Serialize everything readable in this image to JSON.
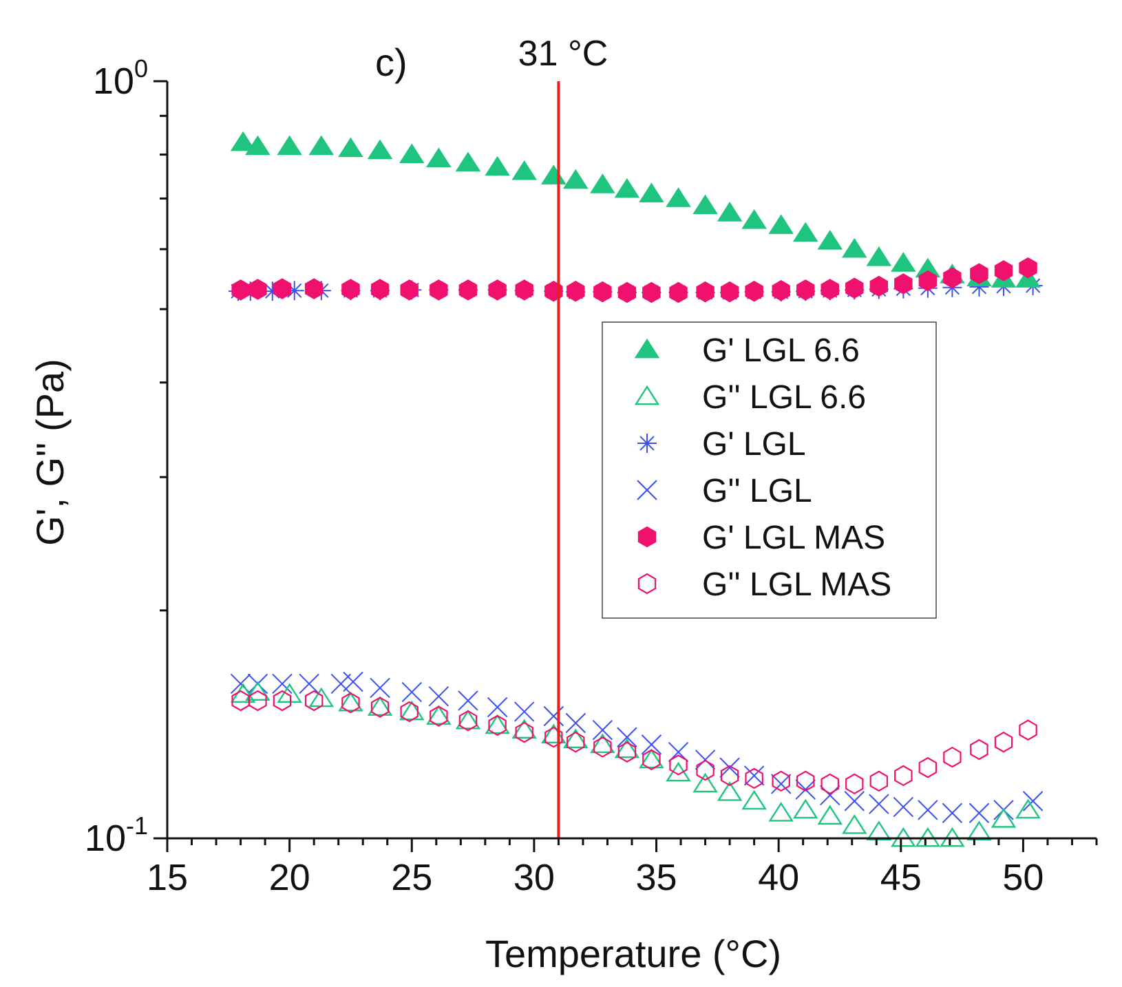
{
  "chart_data": {
    "type": "scatter",
    "panel_label": "c)",
    "xlabel": "Temperature (°C)",
    "ylabel": "G', G'' (Pa)",
    "xlim": [
      15,
      53
    ],
    "ylim": [
      0.1,
      1.0
    ],
    "yscale": "log",
    "xticks": [
      15,
      20,
      25,
      30,
      35,
      40,
      45,
      50
    ],
    "xtick_labels": [
      "15",
      "20",
      "25",
      "30",
      "35",
      "40",
      "45",
      "50"
    ],
    "yticks": [
      {
        "value": 1.0,
        "base": "10",
        "exp": "0"
      },
      {
        "value": 0.1,
        "base": "10",
        "exp": "-1"
      }
    ],
    "reference_line": {
      "x": 31,
      "label": "31 °C",
      "color": "#e8201e"
    },
    "legend_position": "center-right",
    "series": [
      {
        "name": "G' LGL 6.6",
        "marker": "triangle-filled",
        "color": "#1fc47e",
        "x": [
          18.1,
          18.7,
          20.0,
          21.3,
          22.5,
          23.7,
          25.0,
          26.1,
          27.3,
          28.5,
          29.6,
          30.8,
          31.7,
          32.8,
          33.8,
          34.8,
          35.9,
          37.0,
          38.0,
          39.0,
          40.1,
          41.1,
          42.1,
          43.1,
          44.1,
          45.1,
          46.1,
          47.1,
          48.2,
          49.2,
          50.2
        ],
        "y": [
          0.83,
          0.82,
          0.82,
          0.82,
          0.815,
          0.81,
          0.8,
          0.79,
          0.78,
          0.77,
          0.76,
          0.75,
          0.74,
          0.73,
          0.72,
          0.71,
          0.7,
          0.685,
          0.67,
          0.655,
          0.645,
          0.63,
          0.615,
          0.6,
          0.585,
          0.575,
          0.565,
          0.555,
          0.55,
          0.548,
          0.548
        ]
      },
      {
        "name": "G'' LGL 6.6",
        "marker": "triangle-open",
        "color": "#1fc47e",
        "x": [
          18.1,
          18.7,
          20.0,
          21.3,
          22.5,
          23.7,
          25.0,
          26.1,
          27.3,
          28.5,
          29.6,
          30.8,
          31.7,
          32.8,
          33.8,
          34.8,
          35.9,
          37.0,
          38.0,
          39.0,
          40.1,
          41.1,
          42.1,
          43.1,
          44.1,
          45.1,
          46.1,
          47.1,
          48.2,
          49.2,
          50.2
        ],
        "y": [
          0.155,
          0.156,
          0.155,
          0.153,
          0.151,
          0.149,
          0.147,
          0.145,
          0.143,
          0.141,
          0.139,
          0.137,
          0.135,
          0.133,
          0.131,
          0.127,
          0.122,
          0.118,
          0.115,
          0.112,
          0.108,
          0.109,
          0.107,
          0.104,
          0.102,
          0.1,
          0.1,
          0.1,
          0.102,
          0.106,
          0.109
        ]
      },
      {
        "name": "G' LGL",
        "marker": "asterisk",
        "color": "#3b4ff5",
        "x": [
          17.9,
          18.4,
          19.3,
          20.2,
          21.3,
          22.5,
          23.7,
          25.0,
          26.1,
          27.3,
          28.5,
          29.6,
          30.8,
          31.7,
          32.8,
          33.8,
          34.8,
          35.9,
          37.0,
          38.0,
          39.0,
          40.1,
          41.1,
          42.1,
          43.1,
          44.1,
          45.1,
          46.1,
          47.1,
          48.2,
          49.2,
          50.4
        ],
        "y": [
          0.528,
          0.528,
          0.528,
          0.529,
          0.529,
          0.529,
          0.529,
          0.53,
          0.53,
          0.53,
          0.53,
          0.529,
          0.528,
          0.527,
          0.527,
          0.526,
          0.526,
          0.526,
          0.526,
          0.526,
          0.527,
          0.527,
          0.528,
          0.529,
          0.53,
          0.531,
          0.532,
          0.533,
          0.534,
          0.535,
          0.536,
          0.537
        ]
      },
      {
        "name": "G'' LGL",
        "marker": "x",
        "color": "#3b4ff5",
        "x": [
          18.0,
          18.7,
          19.7,
          20.8,
          22.1,
          22.6,
          23.7,
          25.0,
          26.1,
          27.3,
          28.5,
          29.6,
          30.8,
          31.7,
          32.8,
          33.8,
          34.8,
          35.9,
          37.0,
          38.0,
          39.0,
          40.1,
          41.1,
          42.1,
          43.1,
          44.1,
          45.1,
          46.1,
          47.1,
          48.2,
          49.2,
          50.4
        ],
        "y": [
          0.16,
          0.16,
          0.16,
          0.16,
          0.16,
          0.161,
          0.158,
          0.156,
          0.154,
          0.152,
          0.149,
          0.147,
          0.145,
          0.142,
          0.139,
          0.136,
          0.133,
          0.13,
          0.127,
          0.124,
          0.121,
          0.118,
          0.116,
          0.114,
          0.112,
          0.111,
          0.11,
          0.109,
          0.108,
          0.108,
          0.109,
          0.112
        ]
      },
      {
        "name": "G' LGL MAS",
        "marker": "hexagon-filled",
        "color": "#f0106e",
        "x": [
          18.0,
          18.7,
          19.7,
          21.0,
          22.5,
          23.7,
          24.9,
          26.1,
          27.3,
          28.5,
          29.6,
          30.8,
          31.7,
          32.8,
          33.8,
          34.8,
          35.9,
          37.0,
          38.0,
          39.0,
          40.1,
          41.1,
          42.1,
          43.1,
          44.1,
          45.1,
          46.1,
          47.1,
          48.2,
          49.2,
          50.2
        ],
        "y": [
          0.53,
          0.531,
          0.532,
          0.532,
          0.531,
          0.531,
          0.53,
          0.53,
          0.53,
          0.53,
          0.53,
          0.528,
          0.528,
          0.527,
          0.526,
          0.526,
          0.526,
          0.527,
          0.527,
          0.528,
          0.529,
          0.53,
          0.531,
          0.533,
          0.536,
          0.54,
          0.545,
          0.55,
          0.557,
          0.562,
          0.567
        ]
      },
      {
        "name": "G'' LGL MAS",
        "marker": "hexagon-open",
        "color": "#f0106e",
        "x": [
          18.0,
          18.7,
          19.7,
          21.0,
          22.5,
          23.7,
          24.9,
          26.1,
          27.3,
          28.5,
          29.6,
          30.8,
          31.7,
          32.8,
          33.8,
          34.8,
          35.9,
          37.0,
          38.0,
          39.0,
          40.1,
          41.1,
          42.1,
          43.1,
          44.1,
          45.1,
          46.1,
          47.1,
          48.2,
          49.2,
          50.2
        ],
        "y": [
          0.152,
          0.152,
          0.152,
          0.152,
          0.151,
          0.149,
          0.147,
          0.145,
          0.143,
          0.141,
          0.138,
          0.136,
          0.134,
          0.132,
          0.13,
          0.127,
          0.125,
          0.123,
          0.121,
          0.12,
          0.119,
          0.119,
          0.118,
          0.118,
          0.119,
          0.121,
          0.124,
          0.128,
          0.131,
          0.134,
          0.139
        ]
      }
    ]
  }
}
